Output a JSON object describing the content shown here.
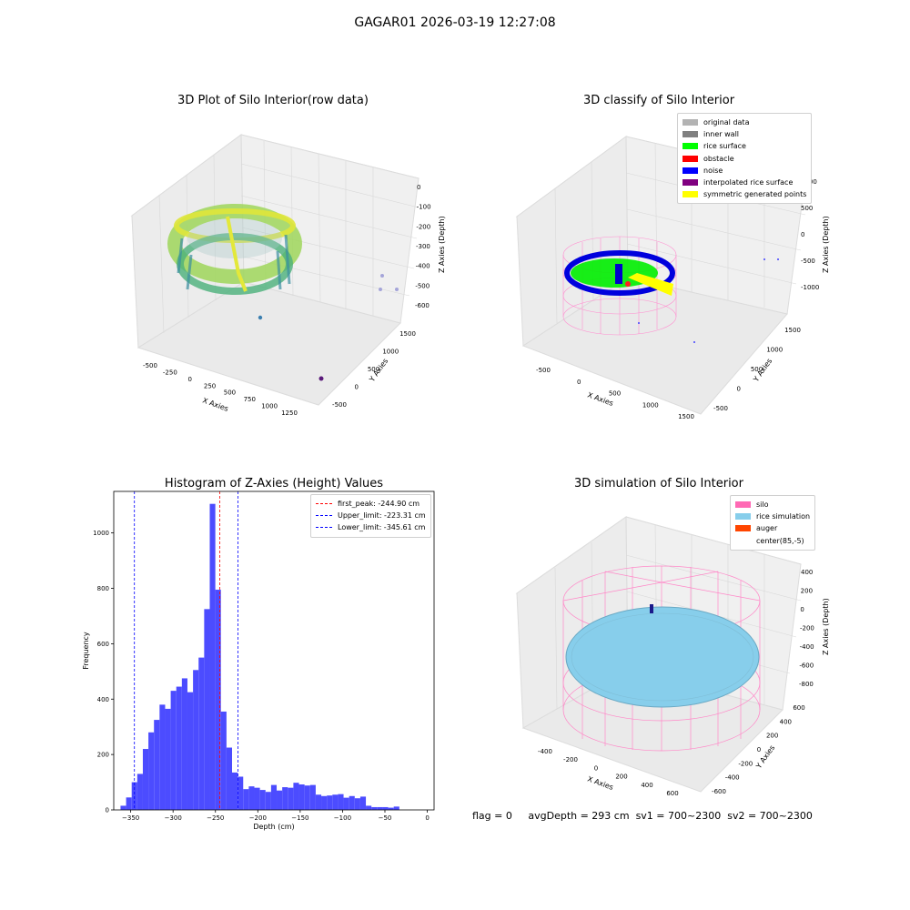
{
  "suptitle": "GAGAR01 2026-03-19 12:27:08",
  "panels": {
    "raw": {
      "title": "3D Plot of Silo Interior(row data)",
      "xlabel": "X Axies",
      "ylabel": "Y Axies",
      "zlabel": "Z Axies (Depth)",
      "xticks": [
        "-500",
        "-250",
        "0",
        "250",
        "500",
        "750",
        "1000",
        "1250"
      ],
      "yticks": [
        "1500",
        "1000",
        "500",
        "0",
        "-500"
      ],
      "zticks": [
        "0",
        "-100",
        "-200",
        "-300",
        "-400",
        "-500",
        "-600"
      ]
    },
    "classify": {
      "title": "3D classify of Silo Interior",
      "xlabel": "X Axies",
      "ylabel": "Y Axies",
      "zlabel": "Z Axies (Depth)",
      "xticks": [
        "-500",
        "0",
        "500",
        "1000",
        "1500"
      ],
      "yticks": [
        "1500",
        "1000",
        "500",
        "0",
        "-500"
      ],
      "zticks": [
        "1000",
        "500",
        "0",
        "-500",
        "-1000"
      ],
      "legend": [
        {
          "label": "original data",
          "color": "#b3b3b3"
        },
        {
          "label": "inner wall",
          "color": "#808080"
        },
        {
          "label": "rice surface",
          "color": "#00ff00"
        },
        {
          "label": "obstacle",
          "color": "#ff0000"
        },
        {
          "label": "noise",
          "color": "#0000ff"
        },
        {
          "label": "interpolated rice surface",
          "color": "#800080"
        },
        {
          "label": "symmetric generated points",
          "color": "#ffff00"
        }
      ]
    },
    "simulation": {
      "title": "3D simulation of Silo Interior",
      "xlabel": "X Axies",
      "ylabel": "Y Axies",
      "zlabel": "Z Axies (Depth)",
      "xticks": [
        "-400",
        "-200",
        "0",
        "200",
        "400",
        "600"
      ],
      "yticks": [
        "600",
        "400",
        "200",
        "0",
        "-200",
        "-400",
        "-600"
      ],
      "zticks": [
        "400",
        "200",
        "0",
        "-200",
        "-400",
        "-600",
        "-800"
      ],
      "legend": [
        {
          "label": "silo",
          "color": "#ff69b4"
        },
        {
          "label": "rice simulation",
          "color": "#87ceeb"
        },
        {
          "label": "auger",
          "color": "#ff4500"
        },
        {
          "label": "center(85,-5)",
          "color": ""
        }
      ]
    }
  },
  "chart_data": {
    "type": "bar",
    "title": "Histogram of Z-Axies (Height) Values",
    "xlabel": "Depth (cm)",
    "ylabel": "Frequency",
    "xlim": [
      -370,
      8
    ],
    "ylim": [
      0,
      1150
    ],
    "xticks": [
      -350,
      -300,
      -250,
      -200,
      -150,
      -100,
      -50,
      0
    ],
    "yticks": [
      0,
      200,
      400,
      600,
      800,
      1000
    ],
    "bin_width": 6.58,
    "bin_start": -362,
    "values": [
      15,
      45,
      100,
      130,
      220,
      280,
      325,
      380,
      365,
      430,
      445,
      475,
      425,
      505,
      550,
      725,
      1105,
      795,
      355,
      225,
      135,
      120,
      75,
      85,
      80,
      72,
      65,
      90,
      70,
      82,
      80,
      98,
      92,
      88,
      90,
      55,
      50,
      52,
      55,
      57,
      44,
      50,
      42,
      48,
      15,
      10,
      10,
      10,
      8,
      12
    ],
    "color": "#4c4cff",
    "lines": [
      {
        "label": "first_peak: -244.90 cm",
        "value": -244.9,
        "color": "#ff0000"
      },
      {
        "label": "Upper_limit: -223.31 cm",
        "value": -223.31,
        "color": "#0000ff"
      },
      {
        "label": "Lower_limit: -345.61 cm",
        "value": -345.61,
        "color": "#0000ff"
      }
    ]
  },
  "footer": {
    "flag": "flag = 0",
    "avg_depth": "avgDepth = 293 cm",
    "sv1": "sv1 = 700~2300",
    "sv2": "sv2 = 700~2300"
  }
}
